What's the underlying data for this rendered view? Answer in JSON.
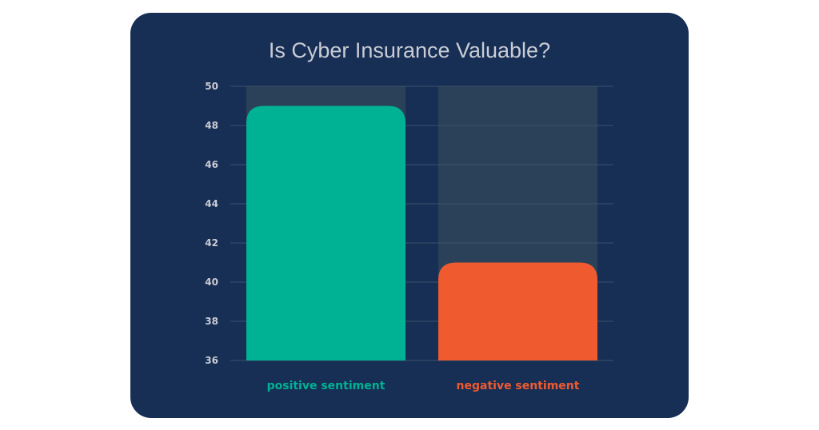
{
  "chart_data": {
    "type": "bar",
    "title": "Is Cyber Insurance Valuable?",
    "categories": [
      "positive sentiment",
      "negative sentiment"
    ],
    "values": [
      49,
      41
    ],
    "ylim": [
      36,
      50
    ],
    "yticks": [
      36,
      38,
      40,
      42,
      44,
      46,
      48,
      50
    ],
    "grid": true,
    "colors": {
      "background": "#172e55",
      "bars": [
        "#00b294",
        "#f05a2f"
      ],
      "track": "#2b4159",
      "grid": "#3c526b",
      "text": "#c9ccd4"
    }
  }
}
